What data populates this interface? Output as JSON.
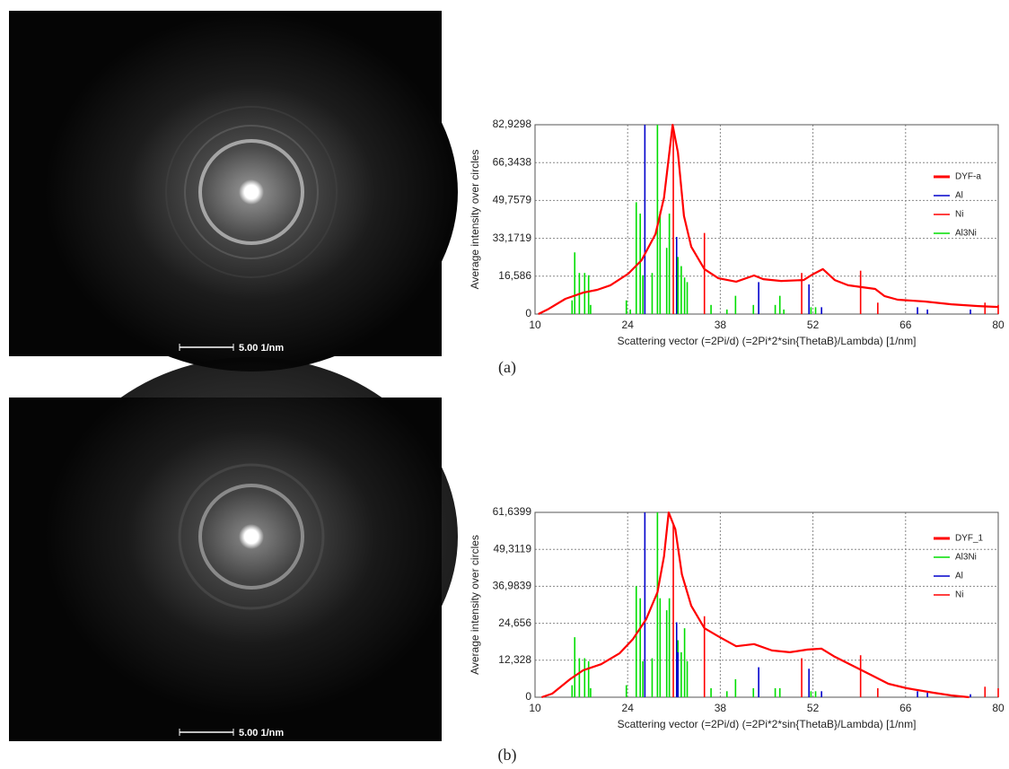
{
  "panels": [
    {
      "label": "(a)",
      "scale_bar": "5.00 1/nm"
    },
    {
      "label": "(b)",
      "scale_bar": "5.00 1/nm"
    }
  ],
  "chart_data": [
    {
      "type": "line",
      "x_label": "Scattering vector (=2Pi/d) (=2Pi*2*sin{ThetaB}/Lambda) [1/nm]",
      "y_label": "Average intensity over circles",
      "xlim": [
        10,
        80
      ],
      "xticks": [
        10,
        24,
        38,
        52,
        66,
        80
      ],
      "ylim": [
        0,
        82.9298
      ],
      "yticks": [
        0,
        {
          "value": 16.586,
          "label": "16,586"
        },
        {
          "value": 33.1719,
          "label": "33,1719"
        },
        {
          "value": 49.7579,
          "label": "49,7579"
        },
        {
          "value": 66.3438,
          "label": "66,3438"
        },
        {
          "value": 82.9298,
          "label": "82,9298"
        }
      ],
      "grid": true,
      "legend": "upper right",
      "series": [
        {
          "name": "DYF-a",
          "color": "#ff0000",
          "style": "line",
          "x": [
            10.5,
            11.9,
            14.6,
            17.3,
            19.4,
            21.4,
            24.1,
            26.1,
            28.2,
            29.5,
            30.8,
            31.6,
            32.5,
            33.6,
            35.6,
            37.7,
            40.4,
            43.1,
            44.5,
            47.2,
            50.6,
            51.9,
            53.5,
            55.3,
            57.3,
            59.4,
            61.4,
            62.8,
            64.8,
            68.9,
            72.9,
            77.0,
            80
          ],
          "values": [
            0,
            2,
            6.7,
            9.4,
            10.6,
            12.6,
            17.7,
            23.6,
            35,
            51,
            82.9,
            70.7,
            43,
            29.5,
            19.7,
            15.7,
            14.2,
            16.9,
            15.3,
            14.5,
            14.9,
            17.3,
            19.7,
            14.9,
            12.6,
            11.8,
            11,
            7.9,
            6.3,
            5.5,
            4.3,
            3.5,
            3.1
          ]
        },
        {
          "name": "Al",
          "color": "#0000cc",
          "style": "stem",
          "x": [
            26.6,
            31.4,
            31.6,
            43.8,
            51.4,
            53.3,
            67.8,
            69.3,
            75.8
          ],
          "values": [
            82.9298,
            33.8,
            24,
            14,
            13,
            3,
            3,
            2,
            2
          ]
        },
        {
          "name": "Ni",
          "color": "#ff0000",
          "style": "stem",
          "x": [
            30.9,
            35.6,
            50.3,
            59.2,
            61.8,
            78,
            80
          ],
          "values": [
            80,
            35.5,
            18,
            19,
            5,
            5,
            4
          ]
        },
        {
          "name": "Al3Ni",
          "color": "#00dd00",
          "style": "stem",
          "x": [
            15.6,
            16.0,
            16.7,
            17.5,
            18.1,
            18.4,
            23.8,
            24.4,
            25.3,
            25.9,
            26.3,
            27.7,
            28.5,
            28.9,
            29.9,
            30.3,
            31.6,
            32.1,
            32.6,
            33.0,
            36.6,
            39.0,
            40.3,
            43.0,
            46.3,
            47.0,
            47.6,
            51.7,
            52.4
          ],
          "values": [
            6,
            27,
            18,
            18,
            17,
            4,
            6,
            2,
            49,
            44,
            17,
            18,
            82.9298,
            45,
            29,
            44,
            25,
            21,
            16,
            14,
            4,
            2,
            8,
            4,
            4,
            8,
            2,
            3,
            3
          ]
        }
      ]
    },
    {
      "type": "line",
      "x_label": "Scattering vector (=2Pi/d) (=2Pi*2*sin{ThetaB}/Lambda) [1/nm]",
      "y_label": "Average intensity over circles",
      "xlim": [
        10,
        80
      ],
      "xticks": [
        10,
        24,
        38,
        52,
        66,
        80
      ],
      "ylim": [
        0,
        61.6399
      ],
      "yticks": [
        0,
        {
          "value": 12.328,
          "label": "12,328"
        },
        {
          "value": 24.656,
          "label": "24,656"
        },
        {
          "value": 36.9839,
          "label": "36,9839"
        },
        {
          "value": 49.3119,
          "label": "49,3119"
        },
        {
          "value": 61.6399,
          "label": "61,6399"
        }
      ],
      "grid": true,
      "legend": "upper right",
      "series": [
        {
          "name": "DYF_1",
          "color": "#ff0000",
          "style": "line",
          "x": [
            11.0,
            12.6,
            15.3,
            17.3,
            20.0,
            22.8,
            24.8,
            26.8,
            28.5,
            29.5,
            30.2,
            31.2,
            32.2,
            33.6,
            35.6,
            37.7,
            40.4,
            43.1,
            45.8,
            48.5,
            51.2,
            53.3,
            55.3,
            58.0,
            60.7,
            63.4,
            66.2,
            70.2,
            72.9,
            75.6
          ],
          "values": [
            0,
            1.2,
            6,
            9,
            11,
            14.7,
            19.4,
            26,
            35,
            47,
            61.6,
            56,
            41,
            30.5,
            23,
            20.3,
            17,
            17.7,
            15.6,
            15,
            15.9,
            16.2,
            13.5,
            10.5,
            7.5,
            4.5,
            3,
            1.5,
            0.6,
            0
          ]
        },
        {
          "name": "Al3Ni",
          "color": "#00dd00",
          "style": "stem",
          "x": [
            15.6,
            16.0,
            16.7,
            17.5,
            18.1,
            18.4,
            23.8,
            25.3,
            25.9,
            26.3,
            27.7,
            28.5,
            28.9,
            29.9,
            30.3,
            31.6,
            32.1,
            32.6,
            33.0,
            36.6,
            39.0,
            40.3,
            43.0,
            46.3,
            47.0,
            51.7,
            52.4
          ],
          "values": [
            4,
            20,
            13,
            13,
            12,
            3,
            4,
            37,
            33,
            12,
            13,
            61.6399,
            33,
            29,
            33,
            19,
            15,
            23,
            12,
            3,
            2,
            6,
            3,
            3,
            3,
            2,
            2
          ]
        },
        {
          "name": "Al",
          "color": "#0000cc",
          "style": "stem",
          "x": [
            26.6,
            31.4,
            31.6,
            43.8,
            51.4,
            53.3,
            67.8,
            69.3,
            75.8
          ],
          "values": [
            61.6399,
            25,
            15,
            10,
            9.5,
            2,
            2,
            1.5,
            1
          ]
        },
        {
          "name": "Ni",
          "color": "#ff0000",
          "style": "stem",
          "x": [
            30.9,
            35.6,
            50.3,
            59.2,
            61.8,
            78,
            80
          ],
          "values": [
            58,
            27,
            13,
            14,
            3,
            3.5,
            3
          ]
        }
      ]
    }
  ]
}
